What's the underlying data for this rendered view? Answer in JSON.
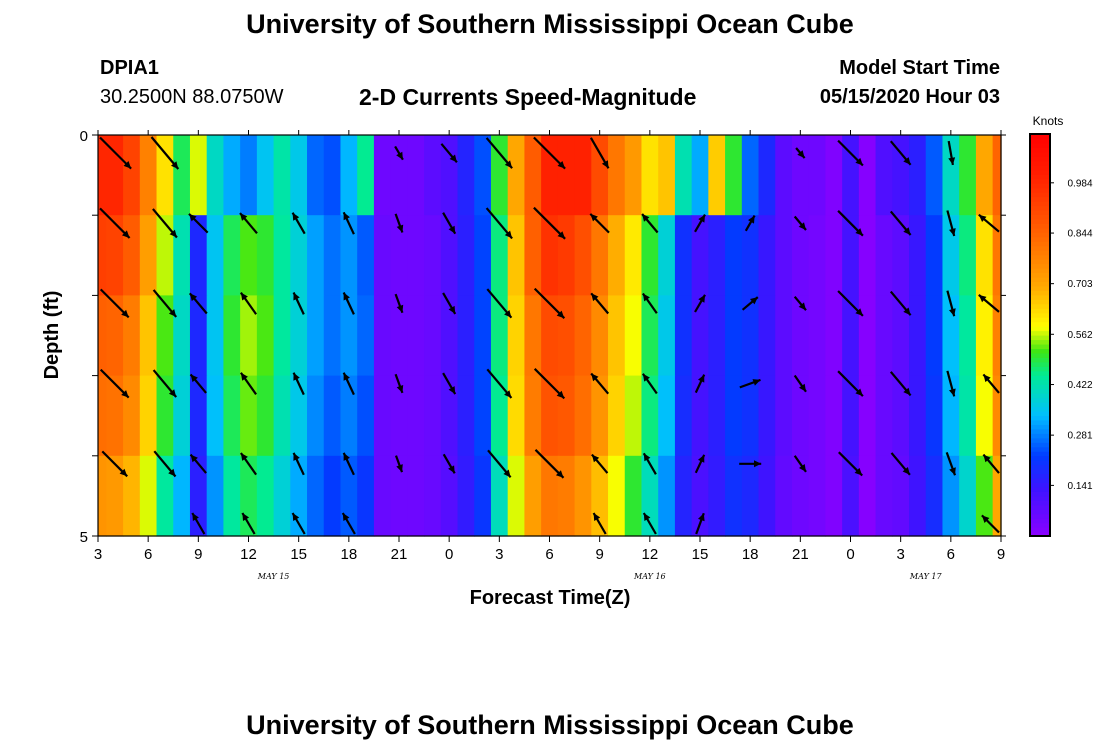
{
  "header": {
    "title": "University of Southern Mississippi Ocean Cube",
    "station_id": "DPIA1",
    "station_coords": "30.2500N 88.0750W",
    "chart_title": "2-D Currents Speed-Magnitude",
    "start_label": "Model Start Time",
    "start_value": "05/15/2020 Hour 03"
  },
  "footer": {
    "title": "University of Southern Mississippi Ocean Cube"
  },
  "chart_data": {
    "type": "heatmap",
    "title": "2-D Currents Speed-Magnitude",
    "xlabel": "Forecast Time(Z)",
    "ylabel": "Depth (ft)",
    "x_tick_labels": [
      "3",
      "6",
      "9",
      "12",
      "15",
      "18",
      "21",
      "0",
      "3",
      "6",
      "9",
      "12",
      "15",
      "18",
      "21",
      "0",
      "3",
      "6",
      "9"
    ],
    "x_hours": [
      0,
      54
    ],
    "date_labels": [
      {
        "text": "MAY 15",
        "hour": 10.5
      },
      {
        "text": "MAY 16",
        "hour": 33
      },
      {
        "text": "MAY 17",
        "hour": 49.5
      }
    ],
    "y_tick_labels": [
      "0",
      "5"
    ],
    "ylim": [
      0,
      5
    ],
    "colorbar": {
      "unit": "Knots",
      "range": [
        0.0,
        1.12
      ],
      "tick_labels": [
        "0.984",
        "0.844",
        "0.703",
        "0.562",
        "0.422",
        "0.281",
        "0.141"
      ],
      "tick_values": [
        0.984,
        0.844,
        0.703,
        0.562,
        0.422,
        0.281,
        0.141
      ]
    },
    "depth_layers": 5,
    "time_hours": [
      0,
      1,
      2,
      3,
      4,
      5,
      6,
      7,
      8,
      9,
      10,
      11,
      12,
      13,
      14,
      15,
      16,
      17,
      18,
      19,
      20,
      21,
      22,
      23,
      24,
      25,
      26,
      27,
      28,
      29,
      30,
      31,
      32,
      33,
      34,
      35,
      36,
      37,
      38,
      39,
      40,
      41,
      42,
      43,
      44,
      45,
      46,
      47,
      48,
      49,
      50,
      51,
      52,
      53,
      54
    ],
    "speed_knots": [
      [
        0.99,
        0.99,
        0.92,
        0.78,
        0.62,
        0.48,
        0.57,
        0.4,
        0.32,
        0.28,
        0.35,
        0.43,
        0.36,
        0.26,
        0.24,
        0.33,
        0.45,
        0.05,
        0.05,
        0.05,
        0.08,
        0.1,
        0.17,
        0.24,
        0.5,
        0.7,
        0.86,
        1.0,
        1.0,
        1.0,
        0.9,
        0.8,
        0.73,
        0.62,
        0.66,
        0.42,
        0.32,
        0.65,
        0.5,
        0.26,
        0.18,
        0.08,
        0.05,
        0.05,
        0.02,
        0.12,
        0.01,
        0.1,
        0.12,
        0.16,
        0.25,
        0.4,
        0.5,
        0.7,
        0.84
      ],
      [
        0.93,
        0.92,
        0.86,
        0.72,
        0.56,
        0.42,
        0.18,
        0.35,
        0.48,
        0.52,
        0.5,
        0.44,
        0.38,
        0.31,
        0.27,
        0.3,
        0.25,
        0.06,
        0.05,
        0.05,
        0.06,
        0.1,
        0.16,
        0.23,
        0.46,
        0.66,
        0.85,
        0.96,
        0.94,
        0.89,
        0.8,
        0.69,
        0.61,
        0.5,
        0.38,
        0.2,
        0.12,
        0.16,
        0.22,
        0.2,
        0.14,
        0.08,
        0.05,
        0.04,
        0.02,
        0.12,
        0.01,
        0.06,
        0.08,
        0.14,
        0.22,
        0.36,
        0.46,
        0.62,
        0.8
      ],
      [
        0.85,
        0.84,
        0.79,
        0.66,
        0.52,
        0.4,
        0.18,
        0.35,
        0.5,
        0.55,
        0.52,
        0.44,
        0.38,
        0.31,
        0.27,
        0.3,
        0.26,
        0.06,
        0.05,
        0.05,
        0.06,
        0.1,
        0.16,
        0.23,
        0.46,
        0.64,
        0.8,
        0.9,
        0.89,
        0.84,
        0.76,
        0.66,
        0.58,
        0.48,
        0.36,
        0.2,
        0.12,
        0.16,
        0.22,
        0.2,
        0.14,
        0.08,
        0.05,
        0.04,
        0.02,
        0.12,
        0.01,
        0.06,
        0.08,
        0.14,
        0.22,
        0.34,
        0.44,
        0.6,
        0.78
      ],
      [
        0.82,
        0.81,
        0.76,
        0.64,
        0.5,
        0.38,
        0.18,
        0.34,
        0.48,
        0.53,
        0.5,
        0.42,
        0.36,
        0.29,
        0.25,
        0.28,
        0.24,
        0.06,
        0.05,
        0.05,
        0.06,
        0.1,
        0.16,
        0.23,
        0.45,
        0.63,
        0.79,
        0.88,
        0.87,
        0.82,
        0.74,
        0.64,
        0.56,
        0.46,
        0.34,
        0.19,
        0.12,
        0.16,
        0.22,
        0.2,
        0.14,
        0.08,
        0.05,
        0.04,
        0.02,
        0.12,
        0.01,
        0.06,
        0.08,
        0.14,
        0.21,
        0.33,
        0.43,
        0.58,
        0.76
      ],
      [
        0.74,
        0.73,
        0.68,
        0.57,
        0.44,
        0.33,
        0.16,
        0.3,
        0.44,
        0.48,
        0.45,
        0.38,
        0.32,
        0.26,
        0.22,
        0.25,
        0.21,
        0.06,
        0.05,
        0.05,
        0.06,
        0.09,
        0.15,
        0.21,
        0.41,
        0.57,
        0.72,
        0.8,
        0.79,
        0.74,
        0.67,
        0.58,
        0.5,
        0.41,
        0.3,
        0.17,
        0.11,
        0.15,
        0.2,
        0.18,
        0.13,
        0.07,
        0.05,
        0.04,
        0.02,
        0.11,
        0.01,
        0.06,
        0.07,
        0.13,
        0.19,
        0.3,
        0.39,
        0.52,
        0.7
      ]
    ],
    "vectors": [
      [
        {
          "hour": 1,
          "dir": 135,
          "len": 1.0
        },
        {
          "hour": 4,
          "dir": 140,
          "len": 0.95
        },
        {
          "hour": 18,
          "dir": 150,
          "len": 0.35
        },
        {
          "hour": 21,
          "dir": 140,
          "len": 0.55
        },
        {
          "hour": 24,
          "dir": 140,
          "len": 0.9
        },
        {
          "hour": 27,
          "dir": 135,
          "len": 1.0
        },
        {
          "hour": 30,
          "dir": 150,
          "len": 0.8
        },
        {
          "hour": 42,
          "dir": 140,
          "len": 0.3
        },
        {
          "hour": 45,
          "dir": 135,
          "len": 0.8
        },
        {
          "hour": 48,
          "dir": 140,
          "len": 0.7
        },
        {
          "hour": 51,
          "dir": 170,
          "len": 0.55
        }
      ],
      [
        {
          "hour": 1,
          "dir": 135,
          "len": 0.95
        },
        {
          "hour": 4,
          "dir": 140,
          "len": 0.85
        },
        {
          "hour": 6,
          "dir": 315,
          "len": 0.6
        },
        {
          "hour": 9,
          "dir": 320,
          "len": 0.6
        },
        {
          "hour": 12,
          "dir": 330,
          "len": 0.55
        },
        {
          "hour": 15,
          "dir": 335,
          "len": 0.55
        },
        {
          "hour": 18,
          "dir": 160,
          "len": 0.45
        },
        {
          "hour": 21,
          "dir": 150,
          "len": 0.55
        },
        {
          "hour": 24,
          "dir": 140,
          "len": 0.9
        },
        {
          "hour": 27,
          "dir": 135,
          "len": 1.0
        },
        {
          "hour": 30,
          "dir": 315,
          "len": 0.6
        },
        {
          "hour": 33,
          "dir": 320,
          "len": 0.55
        },
        {
          "hour": 36,
          "dir": 30,
          "len": 0.45
        },
        {
          "hour": 39,
          "dir": 30,
          "len": 0.4
        },
        {
          "hour": 42,
          "dir": 140,
          "len": 0.4
        },
        {
          "hour": 45,
          "dir": 135,
          "len": 0.8
        },
        {
          "hour": 48,
          "dir": 140,
          "len": 0.7
        },
        {
          "hour": 51,
          "dir": 165,
          "len": 0.6
        },
        {
          "hour": 54,
          "dir": 310,
          "len": 0.6
        }
      ],
      [
        {
          "hour": 1,
          "dir": 135,
          "len": 0.9
        },
        {
          "hour": 4,
          "dir": 140,
          "len": 0.8
        },
        {
          "hour": 6,
          "dir": 320,
          "len": 0.6
        },
        {
          "hour": 9,
          "dir": 325,
          "len": 0.6
        },
        {
          "hour": 12,
          "dir": 335,
          "len": 0.55
        },
        {
          "hour": 15,
          "dir": 335,
          "len": 0.55
        },
        {
          "hour": 18,
          "dir": 160,
          "len": 0.45
        },
        {
          "hour": 21,
          "dir": 150,
          "len": 0.55
        },
        {
          "hour": 24,
          "dir": 140,
          "len": 0.85
        },
        {
          "hour": 27,
          "dir": 135,
          "len": 0.95
        },
        {
          "hour": 30,
          "dir": 320,
          "len": 0.6
        },
        {
          "hour": 33,
          "dir": 325,
          "len": 0.55
        },
        {
          "hour": 36,
          "dir": 30,
          "len": 0.45
        },
        {
          "hour": 39,
          "dir": 50,
          "len": 0.45
        },
        {
          "hour": 42,
          "dir": 140,
          "len": 0.4
        },
        {
          "hour": 45,
          "dir": 135,
          "len": 0.8
        },
        {
          "hour": 48,
          "dir": 140,
          "len": 0.7
        },
        {
          "hour": 51,
          "dir": 165,
          "len": 0.6
        },
        {
          "hour": 54,
          "dir": 310,
          "len": 0.6
        }
      ],
      [
        {
          "hour": 1,
          "dir": 135,
          "len": 0.9
        },
        {
          "hour": 4,
          "dir": 140,
          "len": 0.8
        },
        {
          "hour": 6,
          "dir": 320,
          "len": 0.55
        },
        {
          "hour": 9,
          "dir": 325,
          "len": 0.6
        },
        {
          "hour": 12,
          "dir": 335,
          "len": 0.55
        },
        {
          "hour": 15,
          "dir": 335,
          "len": 0.55
        },
        {
          "hour": 18,
          "dir": 160,
          "len": 0.45
        },
        {
          "hour": 21,
          "dir": 150,
          "len": 0.55
        },
        {
          "hour": 24,
          "dir": 140,
          "len": 0.85
        },
        {
          "hour": 27,
          "dir": 135,
          "len": 0.95
        },
        {
          "hour": 30,
          "dir": 320,
          "len": 0.6
        },
        {
          "hour": 33,
          "dir": 325,
          "len": 0.55
        },
        {
          "hour": 36,
          "dir": 25,
          "len": 0.45
        },
        {
          "hour": 39,
          "dir": 70,
          "len": 0.5
        },
        {
          "hour": 42,
          "dir": 145,
          "len": 0.45
        },
        {
          "hour": 45,
          "dir": 135,
          "len": 0.8
        },
        {
          "hour": 48,
          "dir": 140,
          "len": 0.7
        },
        {
          "hour": 51,
          "dir": 165,
          "len": 0.6
        },
        {
          "hour": 54,
          "dir": 320,
          "len": 0.55
        }
      ],
      [
        {
          "hour": 1,
          "dir": 135,
          "len": 0.8
        },
        {
          "hour": 4,
          "dir": 140,
          "len": 0.75
        },
        {
          "hour": 6,
          "dir": 320,
          "len": 0.55
        },
        {
          "hour": 9,
          "dir": 325,
          "len": 0.6
        },
        {
          "hour": 12,
          "dir": 335,
          "len": 0.55
        },
        {
          "hour": 15,
          "dir": 335,
          "len": 0.55
        },
        {
          "hour": 18,
          "dir": 160,
          "len": 0.4
        },
        {
          "hour": 21,
          "dir": 150,
          "len": 0.5
        },
        {
          "hour": 24,
          "dir": 140,
          "len": 0.8
        },
        {
          "hour": 27,
          "dir": 135,
          "len": 0.9
        },
        {
          "hour": 30,
          "dir": 320,
          "len": 0.55
        },
        {
          "hour": 33,
          "dir": 330,
          "len": 0.55
        },
        {
          "hour": 36,
          "dir": 25,
          "len": 0.45
        },
        {
          "hour": 39,
          "dir": 90,
          "len": 0.5
        },
        {
          "hour": 42,
          "dir": 145,
          "len": 0.45
        },
        {
          "hour": 45,
          "dir": 135,
          "len": 0.75
        },
        {
          "hour": 48,
          "dir": 140,
          "len": 0.65
        },
        {
          "hour": 51,
          "dir": 160,
          "len": 0.55
        },
        {
          "hour": 54,
          "dir": 320,
          "len": 0.55
        }
      ],
      [
        {
          "hour": 6,
          "dir": 330,
          "len": 0.55
        },
        {
          "hour": 9,
          "dir": 330,
          "len": 0.55
        },
        {
          "hour": 12,
          "dir": 330,
          "len": 0.55
        },
        {
          "hour": 15,
          "dir": 330,
          "len": 0.55
        },
        {
          "hour": 30,
          "dir": 330,
          "len": 0.55
        },
        {
          "hour": 33,
          "dir": 330,
          "len": 0.55
        },
        {
          "hour": 36,
          "dir": 20,
          "len": 0.5
        },
        {
          "hour": 54,
          "dir": 315,
          "len": 0.55
        }
      ]
    ],
    "vector_rows_depth_ft": [
      0.1,
      1.1,
      2.1,
      3.1,
      4.1,
      4.85
    ]
  }
}
